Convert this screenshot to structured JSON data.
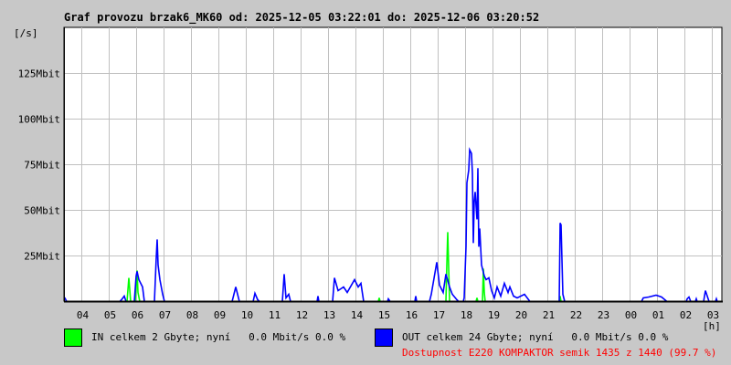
{
  "title": "Graf provozu brzak6_MK60 od: 2025-12-05 03:22:01 do: 2025-12-06 03:20:52",
  "chart_data": {
    "type": "line",
    "title": "Graf provozu brzak6_MK60 od: 2025-12-05 03:22:01 do: 2025-12-06 03:20:52",
    "ylabel": "[/s]",
    "xlabel": "[h]",
    "xlim": [
      "2025-12-05 03:22",
      "2025-12-06 03:22"
    ],
    "ylim": [
      0,
      150
    ],
    "y_unit": "Mbit",
    "y_ticks": [
      25,
      50,
      75,
      100,
      125
    ],
    "y_tick_labels": [
      "25Mbit",
      "50Mbit",
      "75Mbit",
      "100Mbit",
      "125Mbit"
    ],
    "x_tick_labels": [
      "04",
      "05",
      "06",
      "07",
      "08",
      "09",
      "10",
      "11",
      "12",
      "13",
      "14",
      "15",
      "16",
      "17",
      "18",
      "19",
      "20",
      "21",
      "22",
      "23",
      "00",
      "01",
      "02",
      "03"
    ],
    "grid": true,
    "series": [
      {
        "name": "IN",
        "color": "#00ff00",
        "points": [
          [
            "2025-12-05 05:40",
            0
          ],
          [
            "2025-12-05 05:44",
            13
          ],
          [
            "2025-12-05 05:48",
            0
          ],
          [
            "2025-12-05 05:58",
            0
          ],
          [
            "2025-12-05 06:02",
            17
          ],
          [
            "2025-12-05 06:04",
            5
          ],
          [
            "2025-12-05 06:08",
            0
          ],
          [
            "2025-12-05 14:50",
            0
          ],
          [
            "2025-12-05 14:52",
            2
          ],
          [
            "2025-12-05 14:54",
            0
          ],
          [
            "2025-12-05 17:18",
            0
          ],
          [
            "2025-12-05 17:20",
            20
          ],
          [
            "2025-12-05 17:22",
            38
          ],
          [
            "2025-12-05 17:26",
            0
          ],
          [
            "2025-12-05 18:24",
            0
          ],
          [
            "2025-12-05 18:26",
            2
          ],
          [
            "2025-12-05 18:28",
            0
          ],
          [
            "2025-12-05 18:38",
            0
          ],
          [
            "2025-12-05 18:40",
            18
          ],
          [
            "2025-12-05 18:42",
            5
          ],
          [
            "2025-12-05 18:44",
            0
          ],
          [
            "2025-12-05 21:26",
            0
          ],
          [
            "2025-12-05 21:28",
            3
          ],
          [
            "2025-12-05 21:30",
            0
          ]
        ]
      },
      {
        "name": "OUT",
        "color": "#0000ff",
        "points": [
          [
            "2025-12-05 03:22",
            2
          ],
          [
            "2025-12-05 03:24",
            2
          ],
          [
            "2025-12-05 03:28",
            0
          ],
          [
            "2025-12-05 05:24",
            0
          ],
          [
            "2025-12-05 05:28",
            1
          ],
          [
            "2025-12-05 05:34",
            3
          ],
          [
            "2025-12-05 05:38",
            0
          ],
          [
            "2025-12-05 05:56",
            0
          ],
          [
            "2025-12-05 06:00",
            14
          ],
          [
            "2025-12-05 06:02",
            16.5
          ],
          [
            "2025-12-05 06:06",
            12
          ],
          [
            "2025-12-05 06:14",
            8
          ],
          [
            "2025-12-05 06:18",
            0
          ],
          [
            "2025-12-05 06:40",
            0
          ],
          [
            "2025-12-05 06:44",
            24
          ],
          [
            "2025-12-05 06:46",
            34
          ],
          [
            "2025-12-05 06:48",
            20
          ],
          [
            "2025-12-05 06:52",
            12
          ],
          [
            "2025-12-05 06:58",
            4
          ],
          [
            "2025-12-05 07:02",
            0
          ],
          [
            "2025-12-05 09:30",
            0
          ],
          [
            "2025-12-05 09:34",
            4
          ],
          [
            "2025-12-05 09:38",
            8
          ],
          [
            "2025-12-05 09:46",
            0
          ],
          [
            "2025-12-05 10:16",
            0
          ],
          [
            "2025-12-05 10:20",
            4.5
          ],
          [
            "2025-12-05 10:26",
            1
          ],
          [
            "2025-12-05 10:30",
            0
          ],
          [
            "2025-12-05 11:20",
            0
          ],
          [
            "2025-12-05 11:24",
            15
          ],
          [
            "2025-12-05 11:28",
            2
          ],
          [
            "2025-12-05 11:34",
            4
          ],
          [
            "2025-12-05 11:38",
            0
          ],
          [
            "2025-12-05 12:36",
            0
          ],
          [
            "2025-12-05 12:38",
            3
          ],
          [
            "2025-12-05 12:40",
            0
          ],
          [
            "2025-12-05 13:10",
            0
          ],
          [
            "2025-12-05 13:14",
            13
          ],
          [
            "2025-12-05 13:22",
            6
          ],
          [
            "2025-12-05 13:34",
            8
          ],
          [
            "2025-12-05 13:42",
            5
          ],
          [
            "2025-12-05 13:58",
            12
          ],
          [
            "2025-12-05 14:06",
            8
          ],
          [
            "2025-12-05 14:12",
            10
          ],
          [
            "2025-12-05 14:18",
            0
          ],
          [
            "2025-12-05 15:10",
            0
          ],
          [
            "2025-12-05 15:12",
            1.5
          ],
          [
            "2025-12-05 15:16",
            0
          ],
          [
            "2025-12-05 16:10",
            0
          ],
          [
            "2025-12-05 16:12",
            3
          ],
          [
            "2025-12-05 16:14",
            0
          ],
          [
            "2025-12-05 16:42",
            0
          ],
          [
            "2025-12-05 16:46",
            4
          ],
          [
            "2025-12-05 16:58",
            21.5
          ],
          [
            "2025-12-05 17:04",
            9
          ],
          [
            "2025-12-05 17:12",
            5
          ],
          [
            "2025-12-05 17:18",
            15
          ],
          [
            "2025-12-05 17:26",
            8
          ],
          [
            "2025-12-05 17:32",
            4
          ],
          [
            "2025-12-05 17:42",
            1
          ],
          [
            "2025-12-05 17:46",
            0
          ],
          [
            "2025-12-05 17:56",
            0
          ],
          [
            "2025-12-05 17:58",
            2
          ],
          [
            "2025-12-05 18:02",
            30
          ],
          [
            "2025-12-05 18:04",
            65
          ],
          [
            "2025-12-05 18:08",
            72
          ],
          [
            "2025-12-05 18:10",
            83
          ],
          [
            "2025-12-05 18:14",
            81
          ],
          [
            "2025-12-05 18:16",
            70
          ],
          [
            "2025-12-05 18:18",
            32
          ],
          [
            "2025-12-05 18:20",
            55
          ],
          [
            "2025-12-05 18:22",
            60
          ],
          [
            "2025-12-05 18:26",
            45
          ],
          [
            "2025-12-05 18:28",
            73
          ],
          [
            "2025-12-05 18:30",
            30
          ],
          [
            "2025-12-05 18:32",
            40
          ],
          [
            "2025-12-05 18:36",
            20
          ],
          [
            "2025-12-05 18:42",
            14
          ],
          [
            "2025-12-05 18:46",
            12
          ],
          [
            "2025-12-05 18:52",
            13
          ],
          [
            "2025-12-05 18:58",
            6
          ],
          [
            "2025-12-05 19:04",
            2
          ],
          [
            "2025-12-05 19:10",
            8
          ],
          [
            "2025-12-05 19:18",
            3
          ],
          [
            "2025-12-05 19:26",
            10
          ],
          [
            "2025-12-05 19:34",
            5
          ],
          [
            "2025-12-05 19:38",
            8
          ],
          [
            "2025-12-05 19:46",
            3
          ],
          [
            "2025-12-05 19:54",
            2
          ],
          [
            "2025-12-05 20:10",
            4
          ],
          [
            "2025-12-05 20:22",
            0
          ],
          [
            "2025-12-05 21:26",
            0
          ],
          [
            "2025-12-05 21:28",
            43
          ],
          [
            "2025-12-05 21:30",
            42
          ],
          [
            "2025-12-05 21:34",
            4
          ],
          [
            "2025-12-05 21:38",
            0
          ],
          [
            "2025-12-06 00:26",
            0
          ],
          [
            "2025-12-06 00:30",
            2
          ],
          [
            "2025-12-06 00:42",
            2.5
          ],
          [
            "2025-12-06 00:58",
            3.5
          ],
          [
            "2025-12-06 01:10",
            2.5
          ],
          [
            "2025-12-06 01:22",
            0
          ],
          [
            "2025-12-06 02:04",
            0
          ],
          [
            "2025-12-06 02:06",
            1.5
          ],
          [
            "2025-12-06 02:10",
            2.5
          ],
          [
            "2025-12-06 02:14",
            0
          ],
          [
            "2025-12-06 02:24",
            0
          ],
          [
            "2025-12-06 02:26",
            1.5
          ],
          [
            "2025-12-06 02:28",
            0
          ],
          [
            "2025-12-06 02:42",
            0
          ],
          [
            "2025-12-06 02:46",
            6
          ],
          [
            "2025-12-06 02:50",
            3
          ],
          [
            "2025-12-06 02:54",
            0
          ],
          [
            "2025-12-06 03:08",
            0
          ],
          [
            "2025-12-06 03:10",
            1.5
          ],
          [
            "2025-12-06 03:12",
            0
          ]
        ]
      }
    ]
  },
  "legend": {
    "in_text": "IN celkem 2 Gbyte; nyní   0.0 Mbit/s 0.0 %",
    "in_color": "#00ff00",
    "out_text": "OUT celkem 24 Gbyte; nyní   0.0 Mbit/s 0.0 %",
    "out_color": "#0000ff",
    "availability_text": "Dostupnost E220 KOMPAKTOR semik 1435 z 1440 (99.7 %)",
    "availability_color": "#ff0000"
  }
}
